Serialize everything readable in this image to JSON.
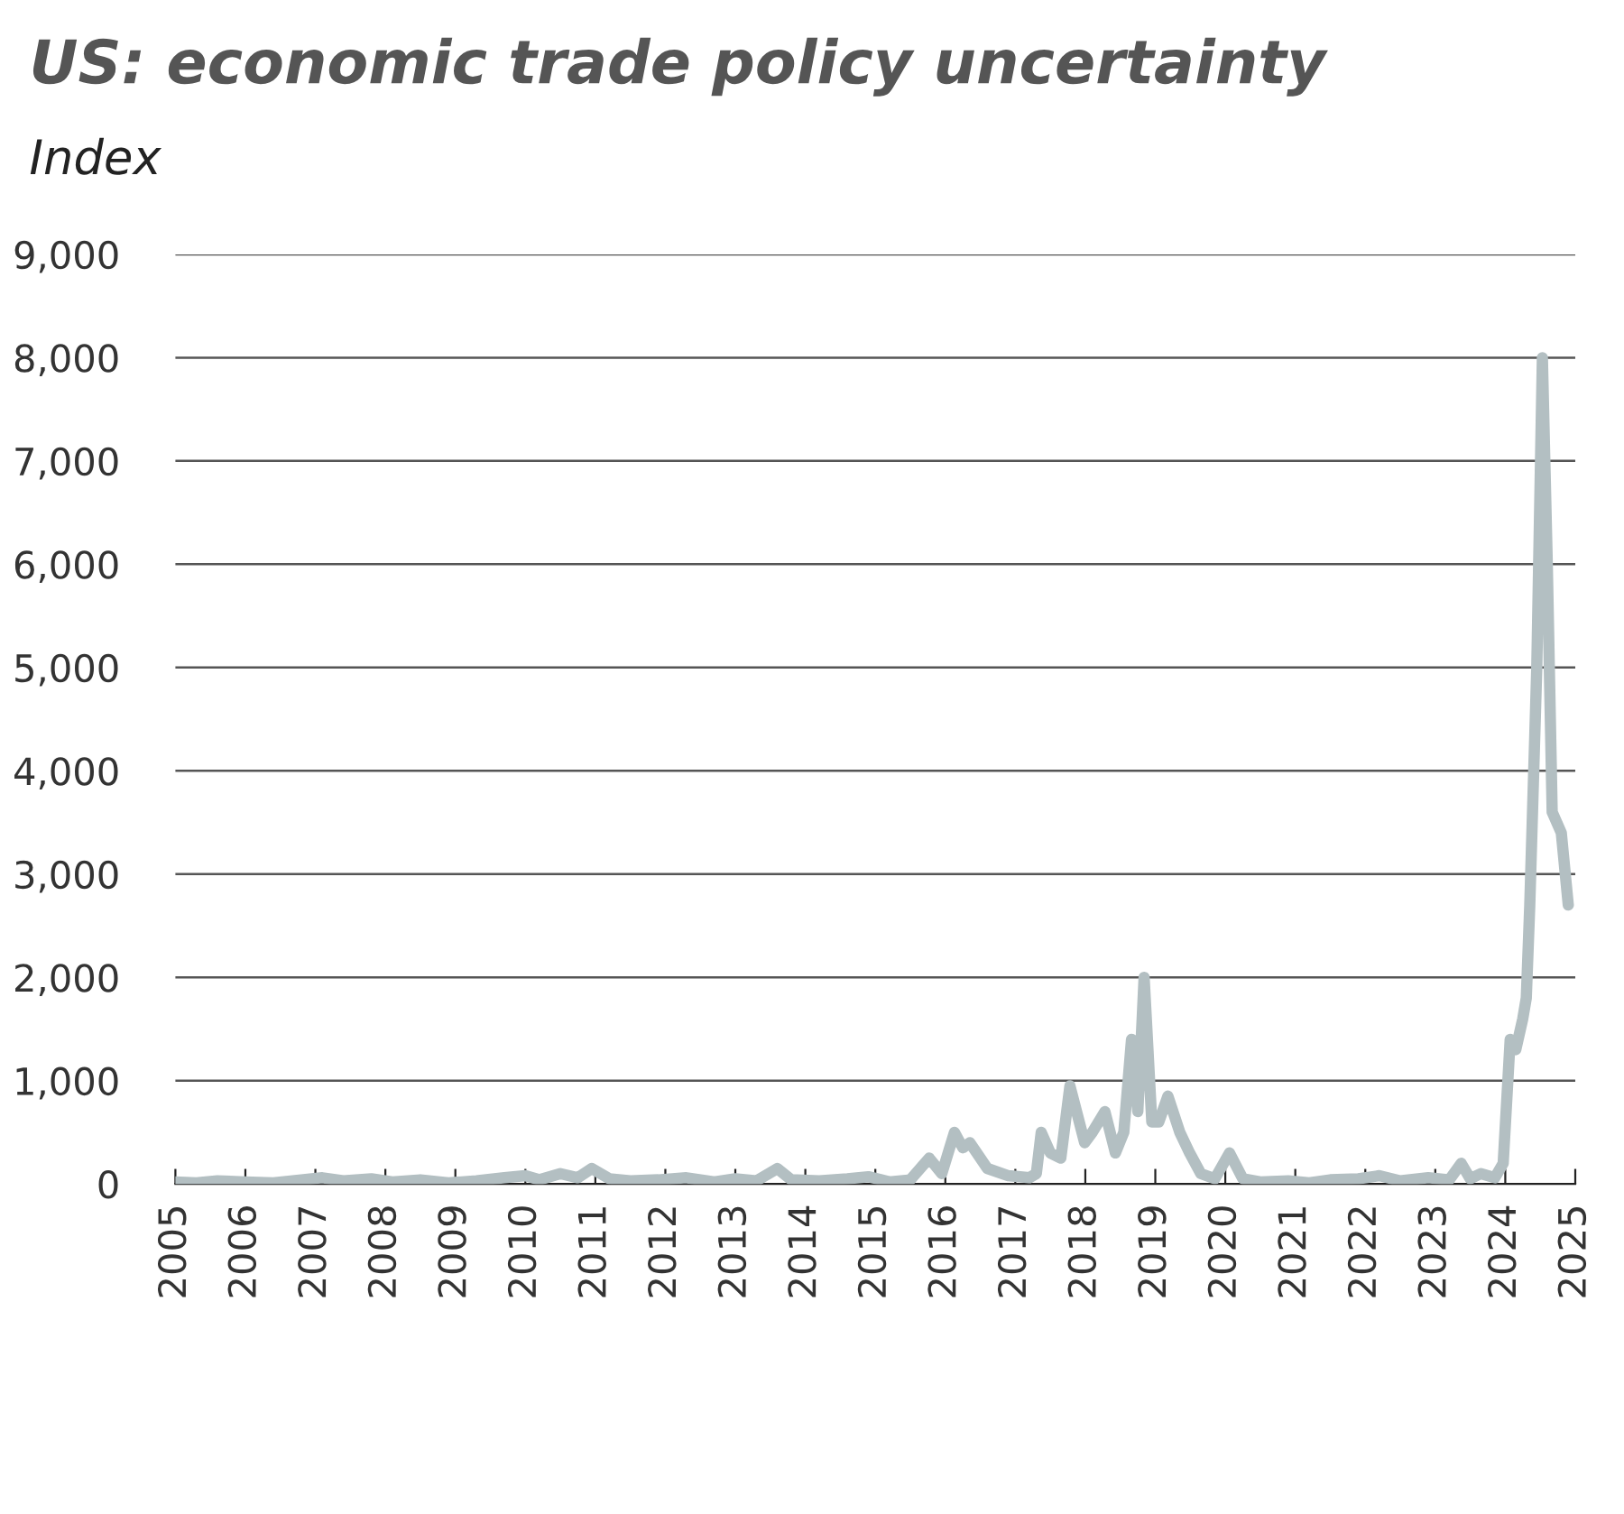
{
  "chart_data": {
    "type": "line",
    "title": "US: economic trade policy uncertainty",
    "subtitle": "Index",
    "x": [
      2005.0,
      2005.3,
      2005.6,
      2006.0,
      2006.4,
      2006.8,
      2007.1,
      2007.4,
      2007.8,
      2008.1,
      2008.5,
      2008.9,
      2009.3,
      2009.7,
      2010.0,
      2010.2,
      2010.5,
      2010.75,
      2010.95,
      2011.2,
      2011.5,
      2011.9,
      2012.3,
      2012.7,
      2013.0,
      2013.3,
      2013.6,
      2013.8,
      2014.2,
      2014.6,
      2014.9,
      2015.2,
      2015.5,
      2015.77,
      2015.95,
      2016.13,
      2016.25,
      2016.35,
      2016.6,
      2016.9,
      2017.2,
      2017.3,
      2017.37,
      2017.5,
      2017.65,
      2017.78,
      2017.99,
      2018.1,
      2018.28,
      2018.43,
      2018.55,
      2018.66,
      2018.75,
      2018.84,
      2018.95,
      2019.05,
      2019.18,
      2019.35,
      2019.49,
      2019.65,
      2019.85,
      2020.06,
      2020.25,
      2020.5,
      2020.9,
      2021.2,
      2021.5,
      2021.9,
      2022.2,
      2022.5,
      2022.9,
      2023.2,
      2023.37,
      2023.5,
      2023.65,
      2023.85,
      2023.97,
      2024.07,
      2024.15,
      2024.25,
      2024.3,
      2024.35,
      2024.45,
      2024.53,
      2024.6,
      2024.67,
      2024.8,
      2024.9
    ],
    "series": [
      {
        "color": "#b3bfc2",
        "values": [
          20,
          10,
          30,
          20,
          10,
          40,
          60,
          30,
          50,
          20,
          40,
          10,
          30,
          60,
          80,
          40,
          100,
          60,
          150,
          50,
          30,
          40,
          60,
          20,
          50,
          30,
          150,
          40,
          30,
          50,
          70,
          20,
          40,
          250,
          100,
          500,
          350,
          400,
          150,
          80,
          60,
          100,
          500,
          300,
          250,
          950,
          400,
          500,
          700,
          300,
          500,
          1400,
          700,
          2000,
          600,
          600,
          850,
          500,
          300,
          100,
          50,
          300,
          50,
          20,
          30,
          10,
          40,
          50,
          80,
          30,
          60,
          40,
          200,
          50,
          100,
          60,
          200,
          1400,
          1300,
          1600,
          1800,
          2700,
          5000,
          8000,
          6000,
          3600,
          3400,
          2700
        ]
      }
    ],
    "xlim": [
      2005,
      2025
    ],
    "ylim": [
      0,
      9000
    ],
    "xticks": [
      2005,
      2006,
      2007,
      2008,
      2009,
      2010,
      2011,
      2012,
      2013,
      2014,
      2015,
      2016,
      2017,
      2018,
      2019,
      2020,
      2021,
      2022,
      2023,
      2024,
      2025
    ],
    "yticks": [
      {
        "value": 0,
        "label": "0"
      },
      {
        "value": 1000,
        "label": "1,000"
      },
      {
        "value": 2000,
        "label": "2,000"
      },
      {
        "value": 3000,
        "label": "3,000"
      },
      {
        "value": 4000,
        "label": "4,000"
      },
      {
        "value": 5000,
        "label": "5,000"
      },
      {
        "value": 6000,
        "label": "6,000"
      },
      {
        "value": 7000,
        "label": "7,000"
      },
      {
        "value": 8000,
        "label": "8,000"
      },
      {
        "value": 9000,
        "label": "9,000"
      }
    ],
    "grid": "y",
    "legend": false,
    "marker": "none",
    "line_style": "solid"
  }
}
